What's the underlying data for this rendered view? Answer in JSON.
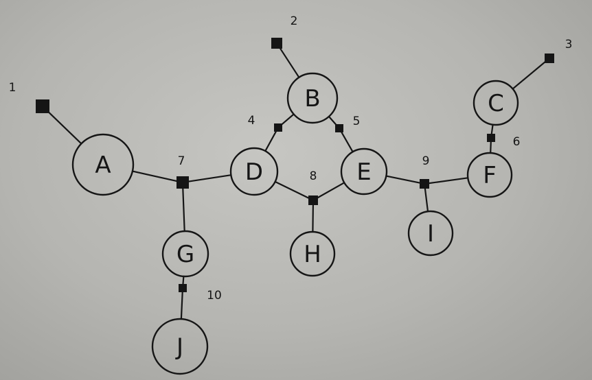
{
  "diagram": {
    "nodes": [
      {
        "id": "A",
        "label": "A"
      },
      {
        "id": "B",
        "label": "B"
      },
      {
        "id": "C",
        "label": "C"
      },
      {
        "id": "D",
        "label": "D"
      },
      {
        "id": "E",
        "label": "E"
      },
      {
        "id": "F",
        "label": "F"
      },
      {
        "id": "G",
        "label": "G"
      },
      {
        "id": "H",
        "label": "H"
      },
      {
        "id": "I",
        "label": "I"
      },
      {
        "id": "J",
        "label": "J"
      }
    ],
    "junctions": [
      {
        "id": "1",
        "label": "1"
      },
      {
        "id": "2",
        "label": "2"
      },
      {
        "id": "3",
        "label": "3"
      },
      {
        "id": "4",
        "label": "4"
      },
      {
        "id": "5",
        "label": "5"
      },
      {
        "id": "6",
        "label": "6"
      },
      {
        "id": "7",
        "label": "7"
      },
      {
        "id": "8",
        "label": "8"
      },
      {
        "id": "9",
        "label": "9"
      },
      {
        "id": "10",
        "label": "10"
      }
    ],
    "edges": [
      [
        "1",
        "A"
      ],
      [
        "A",
        "7"
      ],
      [
        "7",
        "D"
      ],
      [
        "7",
        "G"
      ],
      [
        "G",
        "10"
      ],
      [
        "10",
        "J"
      ],
      [
        "D",
        "4"
      ],
      [
        "4",
        "B"
      ],
      [
        "B",
        "2"
      ],
      [
        "B",
        "5"
      ],
      [
        "5",
        "E"
      ],
      [
        "D",
        "8"
      ],
      [
        "8",
        "E"
      ],
      [
        "8",
        "H"
      ],
      [
        "E",
        "9"
      ],
      [
        "9",
        "F"
      ],
      [
        "9",
        "I"
      ],
      [
        "F",
        "6"
      ],
      [
        "6",
        "C"
      ],
      [
        "C",
        "3"
      ]
    ],
    "colors": {
      "ink": "#151515",
      "paper": "#bdbdb9"
    }
  }
}
